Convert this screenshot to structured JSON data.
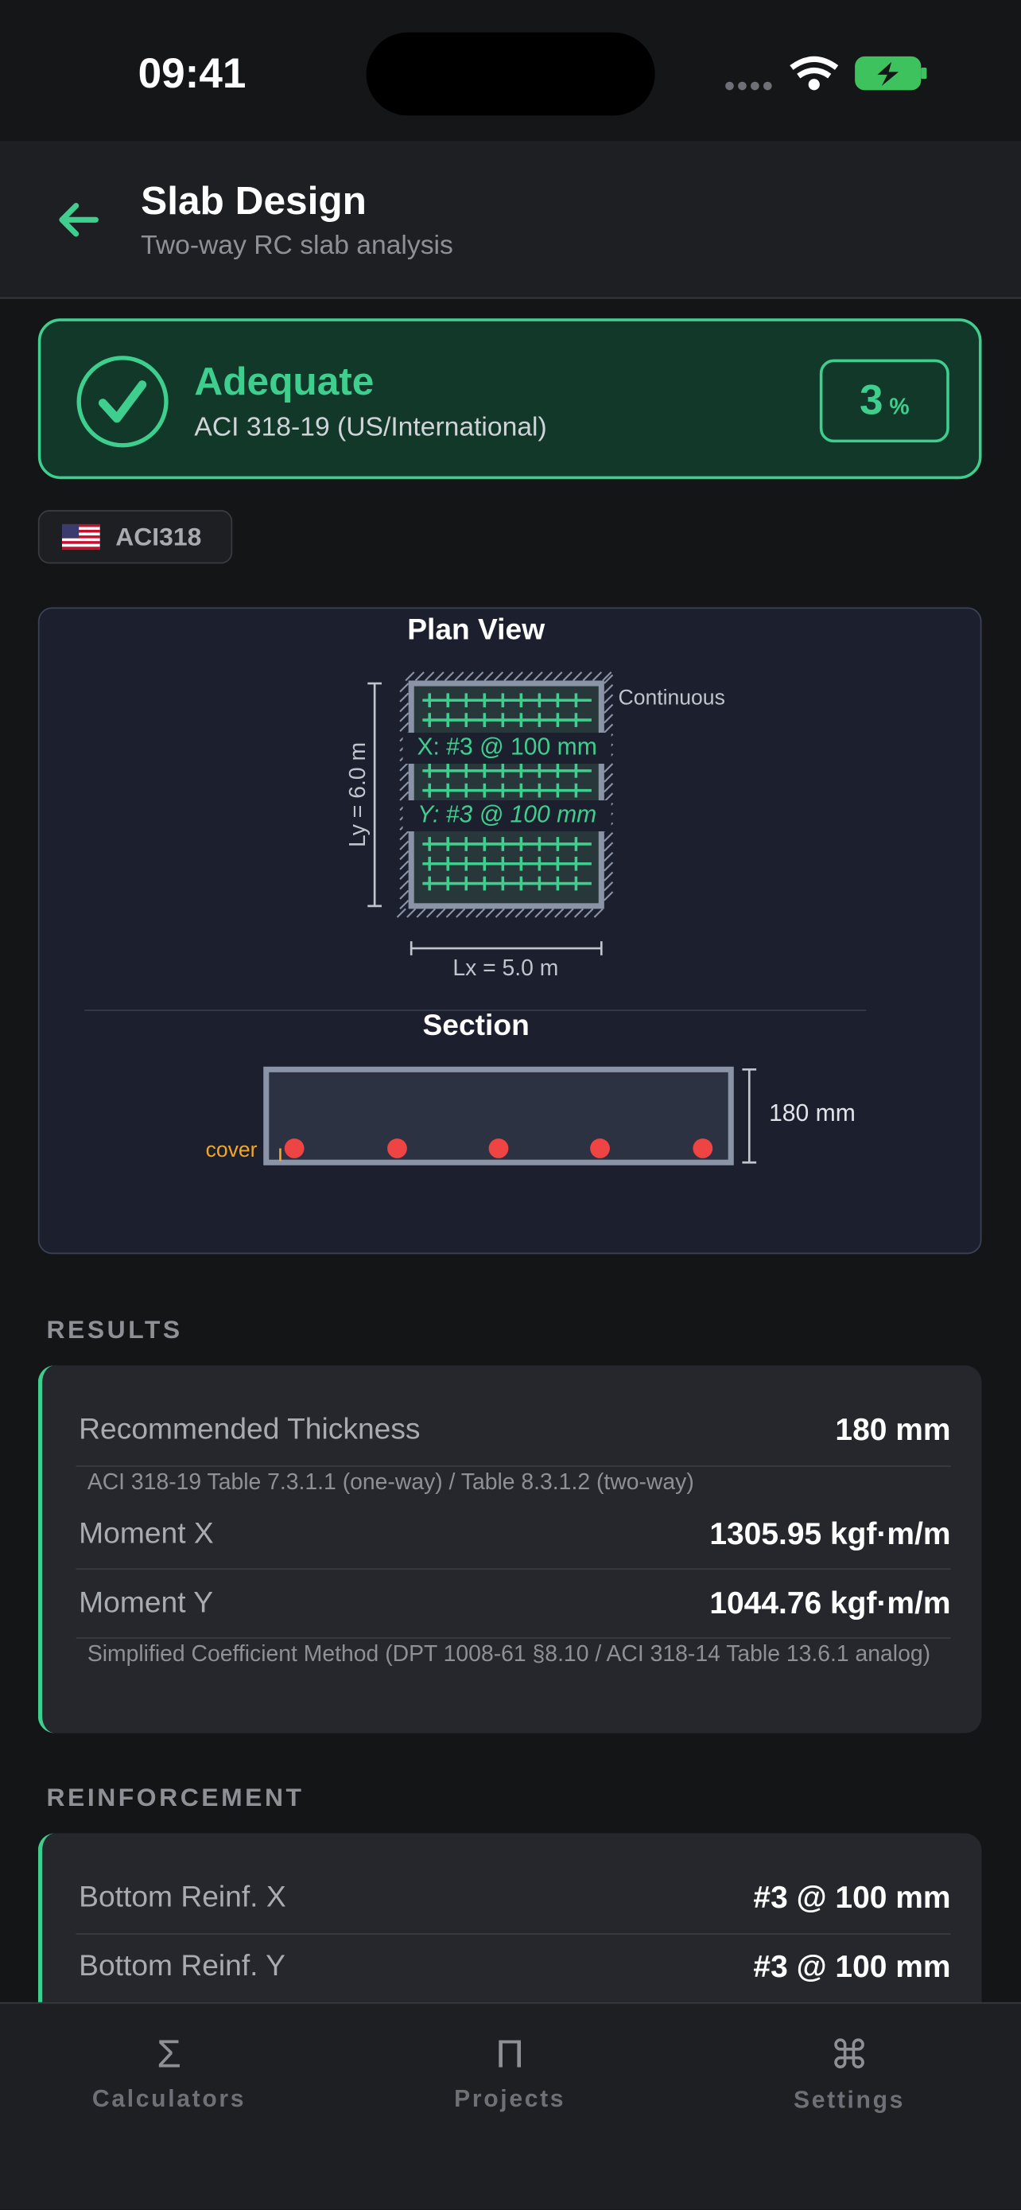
{
  "status_bar": {
    "time": "09:41"
  },
  "header": {
    "title": "Slab Design",
    "subtitle": "Two-way RC slab analysis"
  },
  "status": {
    "label": "Adequate",
    "code": "ACI 318-19 (US/International)",
    "ratio": "3",
    "ratio_unit": "%"
  },
  "badge": {
    "label": "ACI318"
  },
  "plan": {
    "title": "Plan View",
    "edge": "Continuous",
    "rebar_x": "X: #3 @ 100 mm",
    "rebar_y": "Y: #3 @ 100 mm",
    "ly": "Ly = 6.0 m",
    "lx": "Lx = 5.0 m"
  },
  "section": {
    "title": "Section",
    "thickness": "180 mm",
    "cover": "cover"
  },
  "results": {
    "heading": "RESULTS",
    "rows": [
      {
        "label": "Recommended Thickness",
        "value": "180 mm"
      },
      {
        "label": "Moment X",
        "value": "1305.95 kgf·m/m"
      },
      {
        "label": "Moment Y",
        "value": "1044.76 kgf·m/m"
      }
    ],
    "notes": [
      "ACI 318-19 Table 7.3.1.1 (one-way) / Table 8.3.1.2 (two-way)",
      "Simplified Coefficient Method (DPT 1008-61 §8.10 / ACI 318-14 Table 13.6.1 analog)"
    ]
  },
  "reinforcement": {
    "heading": "REINFORCEMENT",
    "rows": [
      {
        "label": "Bottom Reinf. X",
        "value": "#3 @ 100 mm"
      },
      {
        "label": "Bottom Reinf. Y",
        "value": "#3 @ 100 mm"
      }
    ]
  },
  "tabs": [
    {
      "icon": "Σ",
      "label": "Calculators"
    },
    {
      "icon": "Π",
      "label": "Projects"
    },
    {
      "icon": "⌘",
      "label": "Settings"
    }
  ]
}
